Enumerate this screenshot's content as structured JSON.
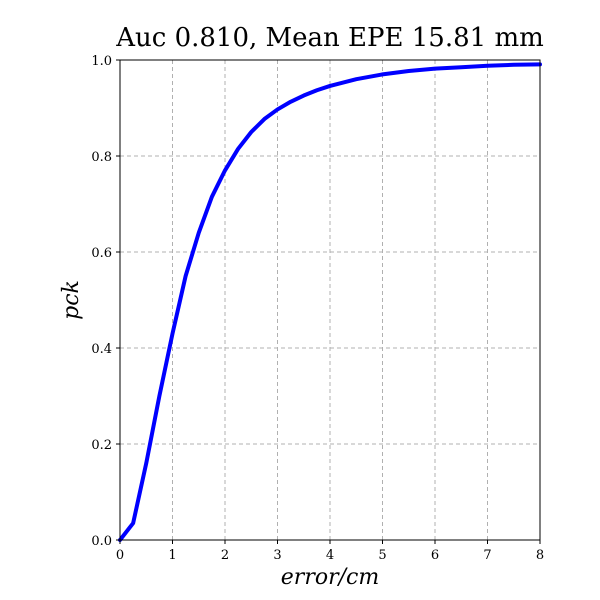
{
  "chart_data": {
    "type": "line",
    "title": "Auc 0.810, Mean EPE 15.81 mm",
    "xlabel": "error/cm",
    "ylabel": "pck",
    "xlim": [
      0,
      8
    ],
    "ylim": [
      0,
      1.0
    ],
    "xticks": [
      0,
      1,
      2,
      3,
      4,
      5,
      6,
      7,
      8
    ],
    "xtick_labels": [
      "0",
      "1",
      "2",
      "3",
      "4",
      "5",
      "6",
      "7",
      "8"
    ],
    "yticks": [
      0.0,
      0.2,
      0.4,
      0.6,
      0.8,
      1.0
    ],
    "ytick_labels": [
      "0.0",
      "0.2",
      "0.4",
      "0.6",
      "0.8",
      "1.0"
    ],
    "grid": true,
    "series": [
      {
        "color": "#0000ff",
        "x": [
          0,
          0.25,
          0.5,
          0.75,
          1.0,
          1.25,
          1.5,
          1.75,
          2.0,
          2.25,
          2.5,
          2.75,
          3.0,
          3.25,
          3.5,
          3.75,
          4.0,
          4.5,
          5.0,
          5.5,
          6.0,
          6.5,
          7.0,
          7.5,
          8.0
        ],
        "y": [
          0.0,
          0.035,
          0.16,
          0.3,
          0.43,
          0.55,
          0.64,
          0.715,
          0.77,
          0.815,
          0.85,
          0.877,
          0.897,
          0.913,
          0.926,
          0.937,
          0.946,
          0.96,
          0.97,
          0.977,
          0.982,
          0.985,
          0.988,
          0.99,
          0.991
        ]
      }
    ]
  }
}
